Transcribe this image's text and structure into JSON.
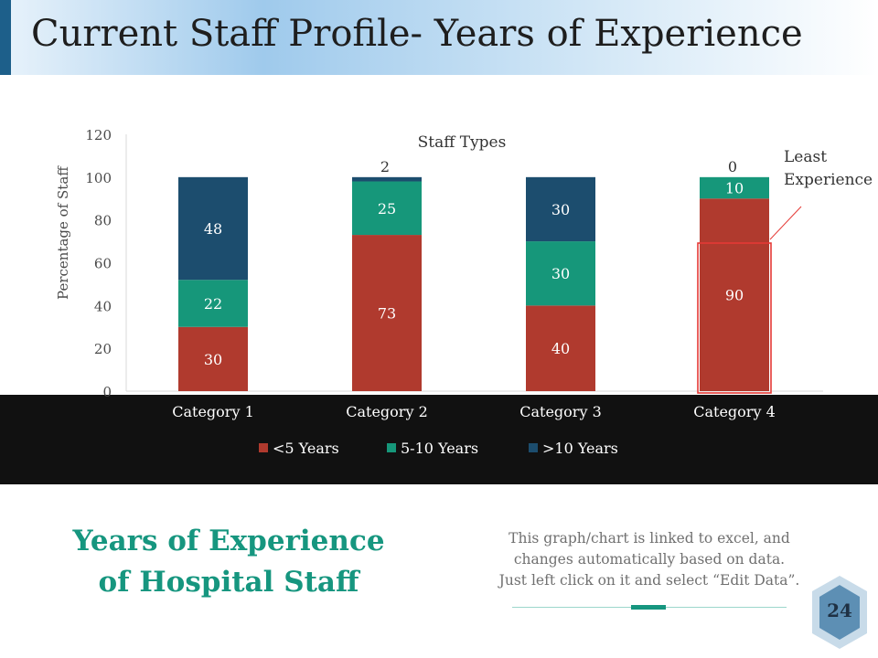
{
  "slide": {
    "title": "Current Staff Profile- Years of Experience",
    "heading_line1": "Years of Experience",
    "heading_line2": "of Hospital Staff",
    "note_line1": "This graph/chart is linked to excel, and",
    "note_line2": "changes automatically based on data.",
    "note_line3": "Just left click on it and select “Edit Data”.",
    "page_number": "24"
  },
  "colors": {
    "lt5": "#b03a2e",
    "mid": "#16977a",
    "gt10": "#1c4d6e",
    "highlight": "#e53935",
    "legend_band": "#111111"
  },
  "chart_data": {
    "type": "bar",
    "stacked": true,
    "title": "Staff Types",
    "xlabel": "",
    "ylabel": "Percentage of Staff",
    "ylim": [
      0,
      120
    ],
    "yticks": [
      0,
      20,
      40,
      60,
      80,
      100,
      120
    ],
    "categories": [
      "Category 1",
      "Category 2",
      "Category 3",
      "Category 4"
    ],
    "series": [
      {
        "name": "<5 Years",
        "color_key": "lt5",
        "values": [
          30,
          73,
          40,
          90
        ],
        "labels": [
          "30",
          "73",
          "40",
          "90"
        ]
      },
      {
        "name": "5-10 Years",
        "color_key": "mid",
        "values": [
          22,
          25,
          30,
          10
        ],
        "labels": [
          "22",
          "25",
          "30",
          "10"
        ]
      },
      {
        "name": ">10 Years",
        "color_key": "gt10",
        "values": [
          48,
          2,
          30,
          0
        ],
        "labels": [
          "48",
          "2",
          "30",
          "0"
        ]
      }
    ],
    "legend_position": "bottom",
    "annotation": {
      "line1": "Least",
      "line2": "Experience",
      "category_index": 3
    }
  }
}
